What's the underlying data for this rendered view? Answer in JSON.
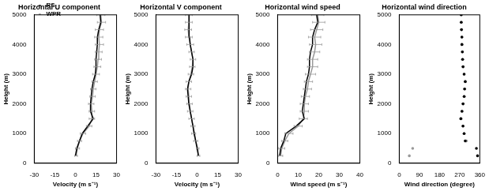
{
  "chart_data": [
    {
      "type": "line",
      "title": "Horizontal U component",
      "x_label": "Velocity (m s⁻¹)",
      "y_label": "Height (m)",
      "xlim": [
        -30,
        30
      ],
      "xticks": [
        -30,
        -15,
        0,
        15,
        30
      ],
      "ylim": [
        0,
        5000
      ],
      "yticks": [
        0,
        1000,
        2000,
        3000,
        4000,
        5000
      ],
      "grid": false,
      "legend": "upper left",
      "series": [
        {
          "name": "RS",
          "color": "#000000",
          "x": [
            0,
            1,
            3,
            5,
            9,
            13,
            11,
            11,
            11.5,
            12,
            13,
            14.5,
            15,
            15,
            15.5,
            16,
            16,
            17,
            18.5,
            18
          ],
          "y": [
            250,
            500,
            750,
            1000,
            1250,
            1500,
            1750,
            2000,
            2250,
            2500,
            2750,
            3000,
            3250,
            3500,
            3750,
            4000,
            4250,
            4500,
            4750,
            5000
          ]
        },
        {
          "name": "WPR",
          "color": "#999999",
          "x": [
            0.5,
            1.5,
            3,
            5.5,
            10,
            12,
            12,
            11.5,
            12.5,
            13,
            14,
            15,
            16,
            16.5,
            17,
            17.5,
            17,
            17.5,
            19,
            18.5
          ],
          "y": [
            250,
            500,
            750,
            1000,
            1250,
            1500,
            1750,
            2000,
            2250,
            2500,
            2750,
            3000,
            3250,
            3500,
            3750,
            4000,
            4250,
            4500,
            4750,
            5000
          ],
          "x_error": [
            1,
            1.5,
            1.5,
            2,
            2,
            2,
            2,
            2,
            2,
            2,
            2,
            2.5,
            2.5,
            2.5,
            2.5,
            3,
            3,
            3,
            3,
            3
          ]
        }
      ]
    },
    {
      "type": "line",
      "title": "Horizontal V component",
      "x_label": "Velocity (m s⁻¹)",
      "y_label": "Height (m)",
      "xlim": [
        -30,
        30
      ],
      "xticks": [
        -30,
        -15,
        0,
        15,
        30
      ],
      "ylim": [
        0,
        5000
      ],
      "yticks": [
        0,
        1000,
        2000,
        3000,
        4000,
        5000
      ],
      "grid": false,
      "series": [
        {
          "color": "#000000",
          "x": [
            1,
            0,
            -1,
            -2,
            -3,
            -4,
            -5,
            -6,
            -6.5,
            -7,
            -6,
            -4,
            -3,
            -3,
            -4,
            -5,
            -5.5,
            -6,
            -6,
            -5.5
          ],
          "y": [
            250,
            500,
            750,
            1000,
            1250,
            1500,
            1750,
            2000,
            2250,
            2500,
            2750,
            3000,
            3250,
            3500,
            3750,
            4000,
            4250,
            4500,
            4750,
            5000
          ]
        },
        {
          "color": "#999999",
          "x": [
            1,
            0.5,
            -1,
            -2.5,
            -3,
            -4,
            -5,
            -5.5,
            -6,
            -6.5,
            -6,
            -4.5,
            -3.5,
            -3,
            -4,
            -5,
            -6,
            -6.5,
            -6,
            -6
          ],
          "y": [
            250,
            500,
            750,
            1000,
            1250,
            1500,
            1750,
            2000,
            2250,
            2500,
            2750,
            3000,
            3250,
            3500,
            3750,
            4000,
            4250,
            4500,
            4750,
            5000
          ],
          "x_error": [
            1,
            1,
            1.5,
            1.5,
            1.5,
            2,
            2,
            2,
            2,
            2,
            2,
            2,
            2,
            2,
            2,
            2.5,
            2.5,
            2.5,
            2.5,
            2.5
          ]
        }
      ]
    },
    {
      "type": "line",
      "title": "Horizontal wind speed",
      "x_label": "Wind speed (m s⁻¹)",
      "y_label": "Height (m)",
      "xlim": [
        0,
        40
      ],
      "xticks": [
        0,
        10,
        20,
        30,
        40
      ],
      "ylim": [
        0,
        5000
      ],
      "yticks": [
        0,
        1000,
        2000,
        3000,
        4000,
        5000
      ],
      "grid": false,
      "series": [
        {
          "color": "#000000",
          "x": [
            1,
            1.5,
            3,
            4,
            9,
            13,
            12,
            12.5,
            13,
            13.5,
            14,
            15,
            15.5,
            15.5,
            16,
            17,
            17,
            18,
            19.5,
            19
          ],
          "y": [
            250,
            500,
            750,
            1000,
            1250,
            1500,
            1750,
            2000,
            2250,
            2500,
            2750,
            3000,
            3250,
            3500,
            3750,
            4000,
            4250,
            4500,
            4750,
            5000
          ]
        },
        {
          "color": "#999999",
          "x": [
            1.5,
            2,
            3.5,
            5.5,
            10,
            12.5,
            13,
            13,
            13.5,
            14.5,
            15,
            16,
            17,
            17,
            18,
            18.5,
            18,
            19,
            20,
            19.5
          ],
          "y": [
            250,
            500,
            750,
            1000,
            1250,
            1500,
            1750,
            2000,
            2250,
            2500,
            2750,
            3000,
            3250,
            3500,
            3750,
            4000,
            4250,
            4500,
            4750,
            5000
          ],
          "x_error": [
            1,
            1.5,
            1.5,
            2,
            2,
            2,
            2,
            2,
            2,
            2,
            2,
            2.5,
            2.5,
            2.5,
            2.5,
            3,
            3,
            3,
            3,
            3
          ]
        }
      ]
    },
    {
      "type": "scatter",
      "title": "Horizontal wind direction",
      "x_label": "Wind direction (degree)",
      "y_label": "Height (m)",
      "xlim": [
        0,
        360
      ],
      "xticks": [
        0,
        90,
        180,
        270,
        360
      ],
      "ylim": [
        0,
        5000
      ],
      "yticks": [
        0,
        1000,
        2000,
        3000,
        4000,
        5000
      ],
      "grid": false,
      "series": [
        {
          "color": "#000000",
          "marker": "circle",
          "x": [
            350,
            345,
            295,
            290,
            285,
            275,
            280,
            285,
            290,
            292,
            295,
            290,
            285,
            283,
            282,
            280,
            280,
            278,
            277,
            277
          ],
          "y": [
            250,
            500,
            750,
            1000,
            1250,
            1500,
            1750,
            2000,
            2250,
            2500,
            2750,
            3000,
            3250,
            3500,
            3750,
            4000,
            4250,
            4500,
            4750,
            5000
          ]
        },
        {
          "color": "#999999",
          "marker": "circle",
          "x": [
            45,
            60,
            300,
            290,
            285,
            277,
            282,
            286,
            291,
            293,
            296,
            290,
            286,
            284,
            283,
            281,
            280,
            279,
            278,
            277
          ],
          "y": [
            250,
            500,
            750,
            1000,
            1250,
            1500,
            1750,
            2000,
            2250,
            2500,
            2750,
            3000,
            3250,
            3500,
            3750,
            4000,
            4250,
            4500,
            4750,
            5000
          ]
        }
      ]
    }
  ]
}
